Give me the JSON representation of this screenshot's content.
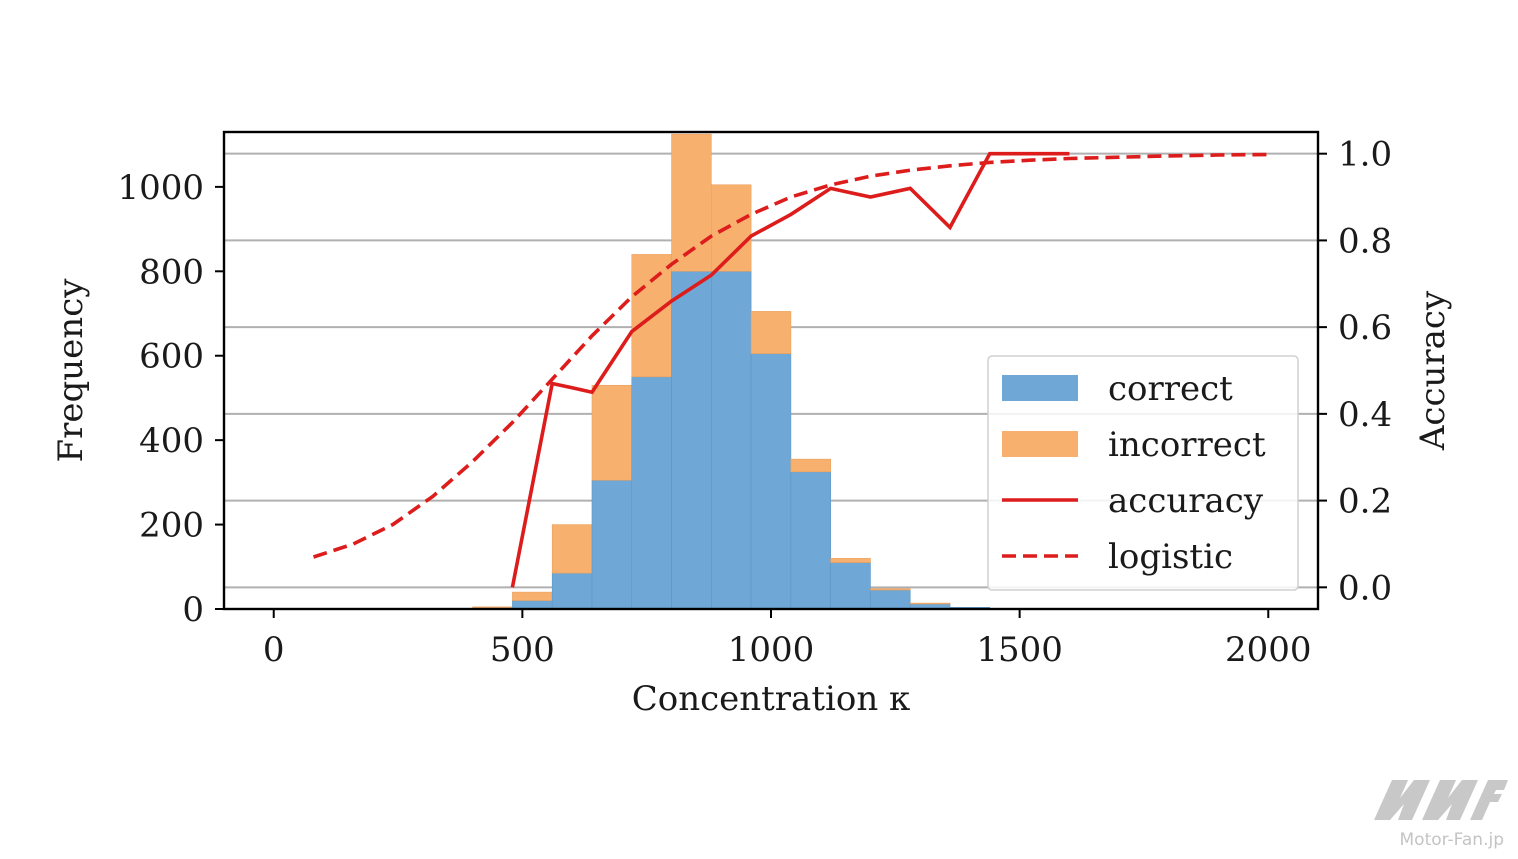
{
  "chart_data": {
    "type": "bar",
    "subtype": "stacked-histogram-with-dual-axis-lines",
    "xlabel": "Concentration κ",
    "ylabel_left": "Frequency",
    "ylabel_right": "Accuracy",
    "xlim": [
      -100,
      2100
    ],
    "ylim_left": [
      0,
      1130
    ],
    "ylim_right": [
      -0.05,
      1.05
    ],
    "x_ticks": [
      0,
      500,
      1000,
      1500,
      2000
    ],
    "y_ticks_left": [
      0,
      200,
      400,
      600,
      800,
      1000
    ],
    "y_ticks_right": [
      0.0,
      0.2,
      0.4,
      0.6,
      0.8,
      1.0
    ],
    "y_tick_labels_right": [
      "0.0",
      "0.2",
      "0.4",
      "0.6",
      "0.8",
      "1.0"
    ],
    "grid": "right-axis horizontal",
    "bins": {
      "edges": [
        400,
        480,
        560,
        640,
        720,
        800,
        880,
        960,
        1040,
        1120,
        1200,
        1280,
        1360,
        1440
      ],
      "series": [
        {
          "name": "correct",
          "color": "#6fa8d6",
          "values": [
            2,
            20,
            85,
            305,
            550,
            800,
            800,
            605,
            325,
            110,
            45,
            12,
            4
          ]
        },
        {
          "name": "incorrect",
          "color": "#f8b06e",
          "values": [
            3,
            20,
            115,
            225,
            290,
            325,
            205,
            100,
            30,
            10,
            3,
            2,
            0
          ]
        }
      ]
    },
    "lines": [
      {
        "name": "accuracy",
        "style": "solid",
        "color": "#dd1c1c",
        "axis": "right",
        "x": [
          480,
          560,
          600,
          640,
          720,
          800,
          880,
          960,
          1040,
          1120,
          1160,
          1200,
          1280,
          1360,
          1440,
          1520,
          1600
        ],
        "y": [
          0.0,
          0.47,
          0.46,
          0.45,
          0.59,
          0.66,
          0.72,
          0.81,
          0.86,
          0.92,
          0.91,
          0.9,
          0.92,
          0.83,
          1.0,
          1.0,
          1.0
        ]
      },
      {
        "name": "logistic",
        "style": "dashed",
        "color": "#dd1c1c",
        "axis": "right",
        "x": [
          80,
          160,
          240,
          320,
          400,
          480,
          560,
          640,
          720,
          800,
          880,
          960,
          1040,
          1120,
          1200,
          1280,
          1360,
          1440,
          1520,
          1600,
          1700,
          1800,
          1900,
          2000
        ],
        "y": [
          0.07,
          0.1,
          0.145,
          0.21,
          0.29,
          0.38,
          0.48,
          0.58,
          0.67,
          0.745,
          0.81,
          0.86,
          0.9,
          0.928,
          0.948,
          0.962,
          0.972,
          0.98,
          0.985,
          0.989,
          0.992,
          0.995,
          0.997,
          0.998
        ]
      }
    ],
    "legend": {
      "position": "center-right",
      "entries": [
        {
          "label": "correct",
          "kind": "patch",
          "color": "#6fa8d6"
        },
        {
          "label": "incorrect",
          "kind": "patch",
          "color": "#f8b06e"
        },
        {
          "label": "accuracy",
          "kind": "line-solid",
          "color": "#dd1c1c"
        },
        {
          "label": "logistic",
          "kind": "line-dashed",
          "color": "#dd1c1c"
        }
      ]
    }
  },
  "watermark": {
    "text": "Motor-Fan.jp",
    "logo_text": "MF"
  }
}
